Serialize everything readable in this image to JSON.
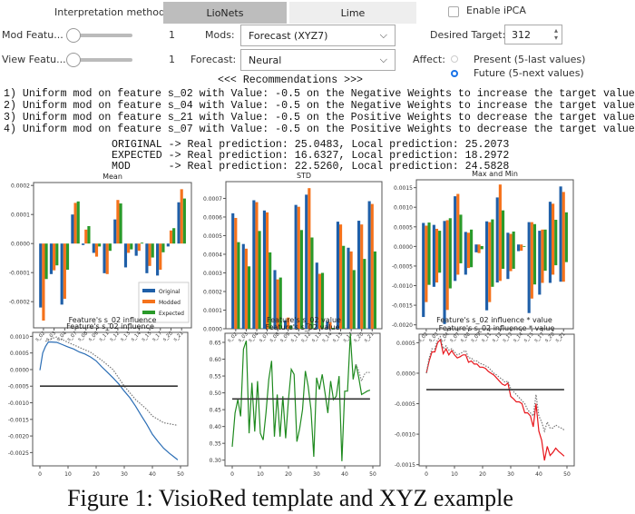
{
  "controls": {
    "interpretation_label": "Interpretation method:",
    "tabs": [
      {
        "label": "LioNets",
        "active": true
      },
      {
        "label": "Lime",
        "active": false
      }
    ],
    "enable_ipca_label": "Enable iPCA",
    "enable_ipca_checked": false,
    "mod_feature_label": "Mod Featu...",
    "mod_feature_value": "1",
    "view_feature_label": "View Featu...",
    "view_feature_value": "1",
    "mods_label": "Mods:",
    "mods_value": "Forecast (XYZ7)",
    "forecast_label": "Forecast:",
    "forecast_value": "Neural",
    "desired_target_label": "Desired Target:",
    "desired_target_value": "312",
    "affect_label": "Affect:",
    "affect_options": [
      {
        "label": "Present (5-last values)",
        "selected": false
      },
      {
        "label": "Future (5-next values)",
        "selected": true
      }
    ]
  },
  "recommendations": {
    "header": "<<< Recommendations >>>",
    "lines": [
      "1) Uniform mod on feature s_02 with Value: -0.5 on the Negative Weights to increase the target value",
      "2) Uniform mod on feature s_04 with Value: -0.5 on the Negative Weights to increase the target value",
      "3) Uniform mod on feature s_21 with Value: -0.5 on the Positive Weights to decrease the target value",
      "4) Uniform mod on feature s_07 with Value: -0.5 on the Positive Weights to decrease the target value"
    ],
    "predictions": [
      "ORIGINAL -> Real prediction: 25.0483, Local prediction: 25.2073",
      "EXPECTED -> Real prediction: 16.6327, Local prediction: 18.2972",
      "MOD      -> Real prediction: 22.5260, Local prediction: 24.5828"
    ]
  },
  "caption": "Figure 1: VisioRed template and XYZ example",
  "colors": {
    "original": "#1f5fa8",
    "modded": "#f5721b",
    "expected": "#2a9a2a",
    "line_red": "#e8141a",
    "line_green": "#1f8a1f",
    "line_blue": "#2a6db5"
  },
  "chart_data": [
    {
      "type": "bar",
      "title": "Mean",
      "categories": [
        "s_02",
        "s_03",
        "s_04",
        "s_07",
        "s_08",
        "s_09",
        "s_11",
        "s_12",
        "s_13",
        "s_14",
        "s_15",
        "s_17",
        "s_20",
        "s_21"
      ],
      "series": [
        {
          "name": "Original",
          "values": [
            -0.00022,
            -0.000105,
            -0.00021,
            0.0001,
            -5e-06,
            -3.2e-05,
            -0.000102,
            8.3e-05,
            -8.2e-05,
            -4.2e-05,
            -0.000102,
            -0.00011,
            -1e-05,
            0.000142
          ]
        },
        {
          "name": "Modded",
          "values": [
            -0.000265,
            -9.2e-05,
            -0.00019,
            0.00014,
            4.8e-05,
            -4.5e-05,
            -0.000105,
            0.00015,
            -3.2e-05,
            -2.5e-05,
            -7.7e-05,
            -9e-05,
            4.5e-05,
            0.000187
          ]
        },
        {
          "name": "Expected",
          "values": [
            -0.000122,
            -7.5e-05,
            -9e-05,
            0.000145,
            6e-05,
            -1e-05,
            -2.5e-05,
            0.000138,
            -2e-05,
            3e-06,
            -4.8e-05,
            -3e-05,
            5.3e-05,
            0.000155
          ]
        }
      ],
      "yticks": [
        "-0.0002",
        "-0.0001",
        "0.0000",
        "0.0001",
        "0.0002"
      ],
      "ylim": [
        -0.00029,
        0.00021
      ],
      "xlabel": "Feature's s_02 influence",
      "legend": [
        "Original",
        "Modded",
        "Expected"
      ],
      "legend_position": "lower right"
    },
    {
      "type": "bar",
      "title": "STD",
      "categories": [
        "s_02",
        "s_03",
        "s_04",
        "s_07",
        "s_08",
        "s_09",
        "s_11",
        "s_12",
        "s_13",
        "s_14",
        "s_15",
        "s_17",
        "s_20",
        "s_21"
      ],
      "series": [
        {
          "name": "Original",
          "values": [
            0.00062,
            0.000455,
            0.00069,
            0.000635,
            0.000315,
            4.5e-05,
            0.000665,
            0.00072,
            0.000355,
            4e-05,
            0.000575,
            0.000435,
            0.00058,
            0.000685
          ]
        },
        {
          "name": "Modded",
          "values": [
            0.000595,
            0.00043,
            0.00068,
            0.000625,
            0.000265,
            6e-05,
            0.000655,
            0.000755,
            0.000295,
            3.5e-05,
            0.00056,
            0.000415,
            0.00056,
            0.00067
          ]
        },
        {
          "name": "Expected",
          "values": [
            0.000465,
            0.000335,
            0.000525,
            0.00041,
            0.000275,
            1.8e-05,
            0.00053,
            0.00049,
            0.0003,
            5e-06,
            0.000445,
            0.000315,
            0.000375,
            0.000415
          ]
        }
      ],
      "yticks": [
        "0.0000",
        "0.0001",
        "0.0002",
        "0.0003",
        "0.0004",
        "0.0005",
        "0.0006",
        "0.0007"
      ],
      "ylim": [
        0,
        0.00079
      ],
      "xlabel": "Feature's s_02 value"
    },
    {
      "type": "bar",
      "title": "Max and Min",
      "categories": [
        "s_02",
        "s_03",
        "s_04",
        "s_07",
        "s_08",
        "s_09",
        "s_11",
        "s_12",
        "s_13",
        "s_14",
        "s_15",
        "s_17",
        "s_20",
        "s_21"
      ],
      "series": [
        {
          "name": "Original",
          "max": [
            0.0006,
            0.00055,
            0.00065,
            0.00128,
            0.00037,
            5e-05,
            0.00064,
            0.00125,
            0.00035,
            5e-05,
            0.00062,
            0.0004,
            0.00114,
            0.00153
          ],
          "min": [
            -0.0018,
            -0.00103,
            -0.00198,
            -0.00088,
            -0.00072,
            -0.00015,
            -0.00163,
            -0.00092,
            -0.00083,
            -0.00012,
            -0.0017,
            -0.00123,
            -0.00093,
            -0.0009
          ]
        },
        {
          "name": "Modded",
          "max": [
            0.00053,
            0.00045,
            0.00067,
            0.00134,
            0.00035,
            5e-05,
            0.00062,
            0.00158,
            0.00032,
            5e-05,
            0.00062,
            0.00043,
            0.00109,
            0.00139
          ],
          "min": [
            -0.00142,
            -0.00092,
            -0.00162,
            -0.00072,
            -0.00055,
            -0.00017,
            -0.00142,
            -0.00088,
            -0.00063,
            -0.00011,
            -0.00133,
            -0.00093,
            -0.00072,
            -0.0009
          ]
        },
        {
          "name": "Expected",
          "max": [
            0.00061,
            0.0004,
            0.00072,
            0.00081,
            0.00043,
            1e-05,
            0.00069,
            0.00092,
            0.00038,
            1e-05,
            0.00057,
            0.00043,
            0.00068,
            0.00087
          ],
          "min": [
            -0.00098,
            -0.00067,
            -0.00107,
            -0.00043,
            -0.00053,
            -7e-05,
            -0.00103,
            -0.00057,
            -0.00057,
            -1e-05,
            -0.00097,
            -0.00062,
            -0.00048,
            -0.0004
          ]
        }
      ],
      "yticks": [
        "-0.0020",
        "-0.0015",
        "-0.0010",
        "-0.0005",
        "0.0000",
        "0.0005",
        "0.0010",
        "0.0015"
      ],
      "ylim": [
        -0.0021,
        0.0017
      ],
      "xlabel": "Feature's s_02 influence * value"
    },
    {
      "type": "line",
      "title": "Feature's s_02 influence",
      "x_range": [
        0,
        49
      ],
      "xticks": [
        "0",
        "10",
        "20",
        "30",
        "40",
        "50"
      ],
      "yticks": [
        "-0.0025",
        "-0.0020",
        "-0.0015",
        "-0.0010",
        "-0.0005",
        "0.0000",
        "0.0005",
        "0.0010"
      ],
      "ylim": [
        -0.0029,
        0.00112
      ],
      "series": [
        {
          "name": "original",
          "style": "solid",
          "color": "#2a6db5",
          "points": [
            [
              0,
              -2e-05
            ],
            [
              1,
              0.0005
            ],
            [
              2,
              0.0007
            ],
            [
              3,
              0.00083
            ],
            [
              4,
              0.00083
            ],
            [
              6,
              0.00082
            ],
            [
              8,
              0.00075
            ],
            [
              10,
              0.00068
            ],
            [
              12,
              0.00062
            ],
            [
              14,
              0.00053
            ],
            [
              16,
              0.00047
            ],
            [
              18,
              0.00038
            ],
            [
              20,
              0.00026
            ],
            [
              22,
              8e-05
            ],
            [
              24,
              -8e-05
            ],
            [
              26,
              -0.00025
            ],
            [
              28,
              -0.00043
            ],
            [
              30,
              -0.00065
            ],
            [
              32,
              -0.00085
            ],
            [
              34,
              -0.0011
            ],
            [
              36,
              -0.00138
            ],
            [
              38,
              -0.00165
            ],
            [
              40,
              -0.00195
            ],
            [
              42,
              -0.00217
            ],
            [
              44,
              -0.00237
            ],
            [
              46,
              -0.00252
            ],
            [
              48,
              -0.00265
            ],
            [
              49,
              -0.00272
            ]
          ]
        },
        {
          "name": "modified",
          "style": "dotted",
          "color": "#777777",
          "points": [
            [
              2,
              0.00085
            ],
            [
              4,
              0.00093
            ],
            [
              6,
              0.00098
            ],
            [
              8,
              0.0009
            ],
            [
              10,
              0.00082
            ],
            [
              14,
              0.00067
            ],
            [
              18,
              0.00052
            ],
            [
              22,
              0.00028
            ],
            [
              26,
              0.0
            ],
            [
              30,
              -0.0005
            ],
            [
              34,
              -0.0009
            ],
            [
              38,
              -0.0012
            ],
            [
              40,
              -0.0014
            ],
            [
              44,
              -0.0016
            ],
            [
              49,
              -0.00168
            ]
          ]
        },
        {
          "name": "threshold",
          "style": "solid",
          "color": "#333333",
          "points": [
            [
              0,
              -0.0005
            ],
            [
              49,
              -0.0005
            ]
          ]
        }
      ]
    },
    {
      "type": "line",
      "title": "Feature's s_02 value",
      "x_range": [
        0,
        49
      ],
      "xticks": [
        "0",
        "10",
        "20",
        "30",
        "40",
        "50"
      ],
      "yticks": [
        "0.30",
        "0.35",
        "0.40",
        "0.45",
        "0.50",
        "0.55",
        "0.60",
        "0.65"
      ],
      "ylim": [
        0.283,
        0.677
      ],
      "series": [
        {
          "name": "original",
          "style": "solid",
          "color": "#1f8a1f",
          "values": [
            0.34,
            0.44,
            0.48,
            0.43,
            0.63,
            0.655,
            0.38,
            0.53,
            0.385,
            0.535,
            0.38,
            0.36,
            0.44,
            0.54,
            0.595,
            0.37,
            0.495,
            0.37,
            0.49,
            0.365,
            0.48,
            0.57,
            0.555,
            0.355,
            0.395,
            0.45,
            0.565,
            0.52,
            0.45,
            0.31,
            0.545,
            0.51,
            0.555,
            0.5,
            0.44,
            0.535,
            0.48,
            0.49,
            0.55,
            0.297,
            0.505,
            0.505,
            0.675,
            0.54,
            0.585,
            0.545,
            0.495,
            0.5,
            0.505,
            0.508
          ]
        },
        {
          "name": "modified",
          "style": "dotted",
          "color": "#888888",
          "points": [
            [
              44,
              0.585
            ],
            [
              45,
              0.565
            ],
            [
              46,
              0.535
            ],
            [
              47,
              0.555
            ],
            [
              48,
              0.562
            ],
            [
              49,
              0.56
            ]
          ]
        },
        {
          "name": "threshold",
          "style": "solid",
          "color": "#333333",
          "points": [
            [
              0,
              0.482
            ],
            [
              49,
              0.482
            ]
          ]
        }
      ]
    },
    {
      "type": "line",
      "title": "Feature's s_02 influence * value",
      "x_range": [
        0,
        49
      ],
      "xticks": [
        "0",
        "10",
        "20",
        "30",
        "40",
        "50"
      ],
      "yticks": [
        "-0.0015",
        "-0.0010",
        "-0.0005",
        "0.0000",
        "0.0005"
      ],
      "ylim": [
        -0.00152,
        0.00064
      ],
      "series": [
        {
          "name": "original",
          "style": "solid",
          "color": "#e8141a",
          "values": [
            0.0,
            0.0002,
            0.00035,
            0.00035,
            0.0005,
            0.00055,
            0.00032,
            0.0004,
            0.0003,
            0.00037,
            0.0003,
            0.00025,
            0.00027,
            0.0003,
            0.0003,
            0.00018,
            0.0002,
            0.00015,
            0.00015,
            0.0001,
            0.0001,
            8e-05,
            3e-05,
            0.0,
            -3e-05,
            -8e-05,
            -0.00013,
            -0.00018,
            -0.0002,
            -0.00016,
            -0.00038,
            -0.00042,
            -0.00047,
            -0.00047,
            -0.0005,
            -0.00065,
            -0.00065,
            -0.0007,
            -0.00088,
            -0.0005,
            -0.00095,
            -0.0011,
            -0.00143,
            -0.0012,
            -0.00135,
            -0.0013,
            -0.00123,
            -0.00128,
            -0.00132,
            -0.00136
          ]
        },
        {
          "name": "modified",
          "style": "dotted",
          "color": "#777777",
          "values": [
            0.0,
            0.00025,
            0.0004,
            0.0004,
            0.00055,
            0.0006,
            0.0004,
            0.00045,
            0.00038,
            0.0004,
            0.00035,
            0.0003,
            0.00032,
            0.00035,
            0.00037,
            0.00025,
            0.00025,
            0.0002,
            0.0002,
            0.00016,
            0.00015,
            0.00012,
            0.0001,
            5e-05,
            0.0,
            -3e-05,
            -7e-05,
            -0.0001,
            -0.00015,
            -0.00013,
            -0.00025,
            -0.0003,
            -0.00035,
            -0.0004,
            -0.00045,
            -0.0005,
            -0.0006,
            -0.00065,
            -0.0007,
            -0.00035,
            -0.0007,
            -0.0008,
            -0.00095,
            -0.0008,
            -0.0009,
            -0.0009,
            -0.00085,
            -0.00088,
            -0.0009,
            -0.00093
          ]
        },
        {
          "name": "threshold",
          "style": "solid",
          "color": "#333333",
          "points": [
            [
              0,
              -0.00027
            ],
            [
              49,
              -0.00027
            ]
          ]
        }
      ]
    }
  ]
}
